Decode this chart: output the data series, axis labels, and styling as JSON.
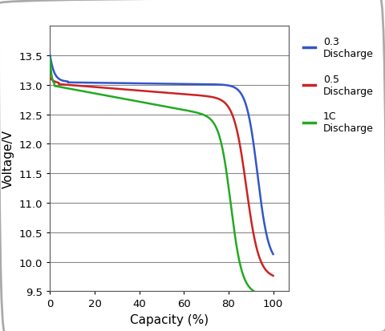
{
  "title": "",
  "xlabel": "Capacity (%)",
  "ylabel": "Voltage/V",
  "xlim": [
    0,
    107
  ],
  "ylim": [
    9.5,
    14.0
  ],
  "yticks": [
    9.5,
    10.0,
    10.5,
    11.0,
    11.5,
    12.0,
    12.5,
    13.0,
    13.5
  ],
  "xticks": [
    0,
    20,
    40,
    60,
    80,
    100
  ],
  "grid_color": "#888888",
  "background_color": "#ffffff",
  "line_03": {
    "color": "#3355cc",
    "lw": 1.8
  },
  "line_05": {
    "color": "#cc2222",
    "lw": 1.8
  },
  "line_1c": {
    "color": "#22aa22",
    "lw": 1.8
  },
  "legend_labels": [
    "0.3\nDischarge",
    "0.5\nDischarge",
    "1C\nDischarge"
  ]
}
